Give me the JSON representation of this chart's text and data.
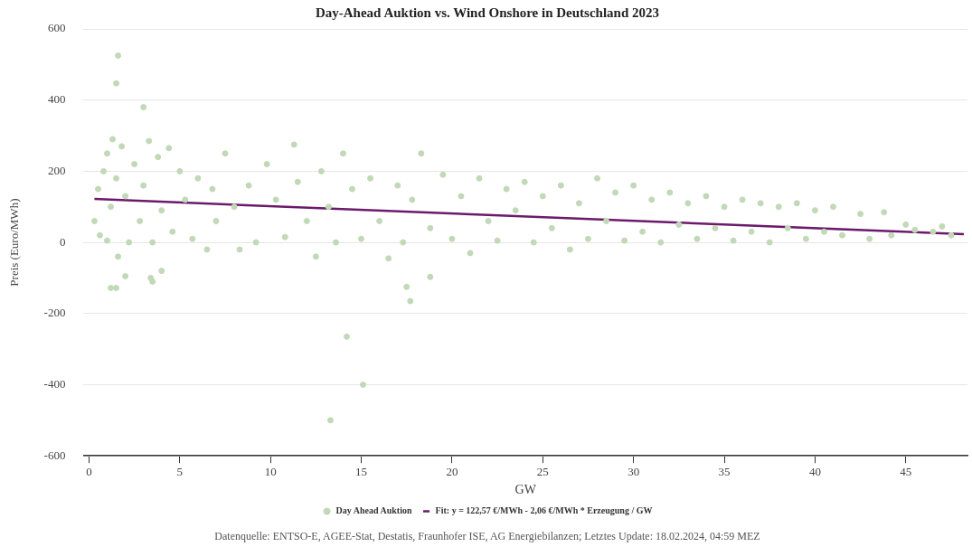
{
  "chart_data": {
    "type": "scatter",
    "title": "Day-Ahead Auktion vs. Wind Onshore in Deutschland 2023",
    "xlabel": "GW",
    "ylabel": "Preis (Euro/MWh)",
    "annotations": [
      "Datenquelle: ENTSO-E, AGEE-Stat, Destatis, Fraunhofer ISE, AG Energiebilanzen; Letztes Update: 18.02.2024, 04:59 MEZ"
    ],
    "xlim": [
      -0.3,
      48.4
    ],
    "ylim": [
      -600,
      600
    ],
    "xticks": [
      0,
      5,
      10,
      15,
      20,
      25,
      30,
      35,
      40,
      45
    ],
    "yticks": [
      -600,
      -400,
      -200,
      0,
      200,
      400,
      600
    ],
    "grid": "y",
    "legend": "bottom",
    "marker": "circle",
    "series": [
      {
        "type": "scatter",
        "name": "Day Ahead Auktion",
        "color": "#c2d9b8",
        "x": [
          0.3,
          0.5,
          0.6,
          0.8,
          1.0,
          1.0,
          1.2,
          1.3,
          1.5,
          1.6,
          1.8,
          2.0,
          2.2,
          2.5,
          2.8,
          3.0,
          3.3,
          3.5,
          3.8,
          4.0,
          4.4,
          4.6,
          5.0,
          5.3,
          5.7,
          6.0,
          6.5,
          6.8,
          7.0,
          7.5,
          8.0,
          8.3,
          8.8,
          9.2,
          9.8,
          10.3,
          10.8,
          11.5,
          12.0,
          12.5,
          12.8,
          13.2,
          13.6,
          14.5,
          15.0,
          15.5,
          16.0,
          16.5,
          17.0,
          17.3,
          17.8,
          18.3,
          18.8,
          19.5,
          20.0,
          20.5,
          21.0,
          21.5,
          22.0,
          22.5,
          23.0,
          23.5,
          24.0,
          24.5,
          25.0,
          25.5,
          26.0,
          26.5,
          27.0,
          27.5,
          28.0,
          28.5,
          29.0,
          29.5,
          30.0,
          30.5,
          31.0,
          31.5,
          32.0,
          32.5,
          33.0,
          33.5,
          34.0,
          34.5,
          35.0,
          35.5,
          36.0,
          36.5,
          37.0,
          37.5,
          38.0,
          38.5,
          39.0,
          39.5,
          40.0,
          40.5,
          41.0,
          41.5,
          42.5,
          43.0,
          43.8,
          44.2,
          45.0,
          45.5,
          46.5,
          47.0,
          47.5,
          1.6,
          1.5,
          3.0,
          1.2,
          1.5,
          2.0,
          3.4,
          3.5,
          4.0,
          11.3,
          14.2,
          15.1,
          13.3,
          17.5,
          17.7,
          18.8,
          14.0
        ],
        "values": [
          60,
          150,
          20,
          200,
          250,
          5,
          100,
          290,
          180,
          -40,
          270,
          130,
          0,
          220,
          60,
          160,
          285,
          0,
          240,
          90,
          265,
          30,
          200,
          120,
          10,
          180,
          -20,
          150,
          60,
          250,
          100,
          -20,
          160,
          0,
          220,
          120,
          15,
          170,
          60,
          -40,
          200,
          100,
          0,
          150,
          10,
          180,
          60,
          -45,
          160,
          0,
          120,
          250,
          40,
          190,
          10,
          130,
          -30,
          180,
          60,
          5,
          150,
          90,
          170,
          0,
          130,
          40,
          160,
          -20,
          110,
          10,
          180,
          60,
          140,
          5,
          160,
          30,
          120,
          0,
          140,
          50,
          110,
          10,
          130,
          40,
          100,
          5,
          120,
          30,
          110,
          0,
          100,
          40,
          110,
          10,
          90,
          30,
          100,
          20,
          80,
          10,
          85,
          20,
          50,
          35,
          30,
          45,
          20,
          525,
          447,
          380,
          -128,
          -128,
          -95,
          -100,
          -110,
          -80,
          275,
          -265,
          -400,
          -500,
          -125,
          -165,
          -97,
          250
        ]
      },
      {
        "type": "line",
        "name": "Fit: y = 122,57 €/MWh - 2,06 €/MWh * Erzeugung / GW",
        "color": "#6b1a6b",
        "marker": "none",
        "x": [
          0.3,
          48.2
        ],
        "values": [
          122,
          23
        ]
      }
    ]
  }
}
